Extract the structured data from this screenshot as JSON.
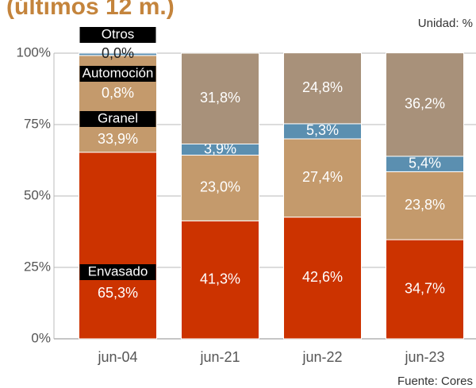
{
  "chart_data": {
    "type": "stacked_bar",
    "title": "(últimos 12 m.)",
    "annotations": [
      "Unidad: %",
      "Fuente: Cores"
    ],
    "categories": [
      "jun-04",
      "jun-21",
      "jun-22",
      "jun-23"
    ],
    "series": [
      {
        "name": "Envasado",
        "color": "#cc3300",
        "values": [
          65.3,
          41.3,
          42.6,
          34.7
        ],
        "value_labels": [
          "65,3%",
          "41,3%",
          "42,6%",
          "34,7%"
        ]
      },
      {
        "name": "Granel",
        "color": "#c49a6c",
        "values": [
          33.9,
          23.0,
          27.4,
          23.8
        ],
        "value_labels": [
          "33,9%",
          "23,0%",
          "27,4%",
          "23,8%"
        ]
      },
      {
        "name": "Automoción",
        "color": "#5b8fb0",
        "values": [
          0.8,
          3.9,
          5.3,
          5.4
        ],
        "value_labels": [
          "0,8%",
          "3,9%",
          "5,3%",
          "5,4%"
        ]
      },
      {
        "name": "Otros",
        "color": "#a8917a",
        "values": [
          0.0,
          31.8,
          24.8,
          36.2
        ],
        "value_labels": [
          "0,0%",
          "31,8%",
          "24,8%",
          "36,2%"
        ]
      }
    ],
    "ylim": [
      0,
      100
    ],
    "yticks": [
      {
        "value": 0,
        "label": "0%"
      },
      {
        "value": 25,
        "label": "25%"
      },
      {
        "value": 50,
        "label": "50%"
      },
      {
        "value": 75,
        "label": "75%"
      },
      {
        "value": 100,
        "label": "100%"
      }
    ],
    "grid": true
  }
}
